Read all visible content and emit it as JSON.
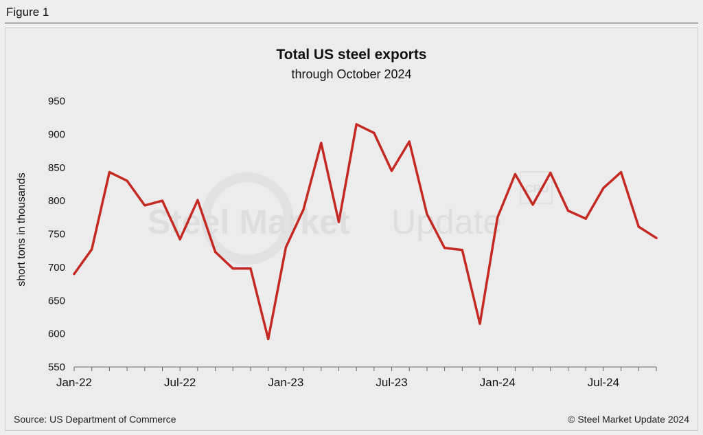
{
  "header": {
    "label": "Figure 1"
  },
  "footer": {
    "source": "Source: US Department of Commerce",
    "copyright": "© Steel Market Update 2024"
  },
  "watermark": {
    "bold_text": "Steel Market",
    "light_text": "Update",
    "badge": "CRU"
  },
  "colors": {
    "line": "#c42a23",
    "axis": "#666666",
    "background": "#ececec"
  },
  "chart_data": {
    "type": "line",
    "title": "Total US steel exports",
    "subtitle": "through October 2024",
    "xlabel": "",
    "ylabel": "short tons in thousands",
    "ylim": [
      550,
      950
    ],
    "yticks": [
      550,
      600,
      650,
      700,
      750,
      800,
      850,
      900,
      950
    ],
    "xtick_labels": [
      {
        "index": 0,
        "label": "Jan-22"
      },
      {
        "index": 6,
        "label": "Jul-22"
      },
      {
        "index": 12,
        "label": "Jan-23"
      },
      {
        "index": 18,
        "label": "Jul-23"
      },
      {
        "index": 24,
        "label": "Jan-24"
      },
      {
        "index": 30,
        "label": "Jul-24"
      }
    ],
    "grid": false,
    "x": [
      "Jan-22",
      "Feb-22",
      "Mar-22",
      "Apr-22",
      "May-22",
      "Jun-22",
      "Jul-22",
      "Aug-22",
      "Sep-22",
      "Oct-22",
      "Nov-22",
      "Dec-22",
      "Jan-23",
      "Feb-23",
      "Mar-23",
      "Apr-23",
      "May-23",
      "Jun-23",
      "Jul-23",
      "Aug-23",
      "Sep-23",
      "Oct-23",
      "Nov-23",
      "Dec-23",
      "Jan-24",
      "Feb-24",
      "Mar-24",
      "Apr-24",
      "May-24",
      "Jun-24",
      "Jul-24",
      "Aug-24",
      "Sep-24",
      "Oct-24"
    ],
    "series": [
      {
        "values": [
          690,
          727,
          843,
          830,
          793,
          800,
          742,
          801,
          723,
          698,
          698,
          592,
          730,
          787,
          887,
          768,
          915,
          902,
          845,
          889,
          780,
          729,
          726,
          615,
          775,
          840,
          794,
          842,
          785,
          773,
          819,
          843,
          761,
          744
        ]
      }
    ]
  }
}
